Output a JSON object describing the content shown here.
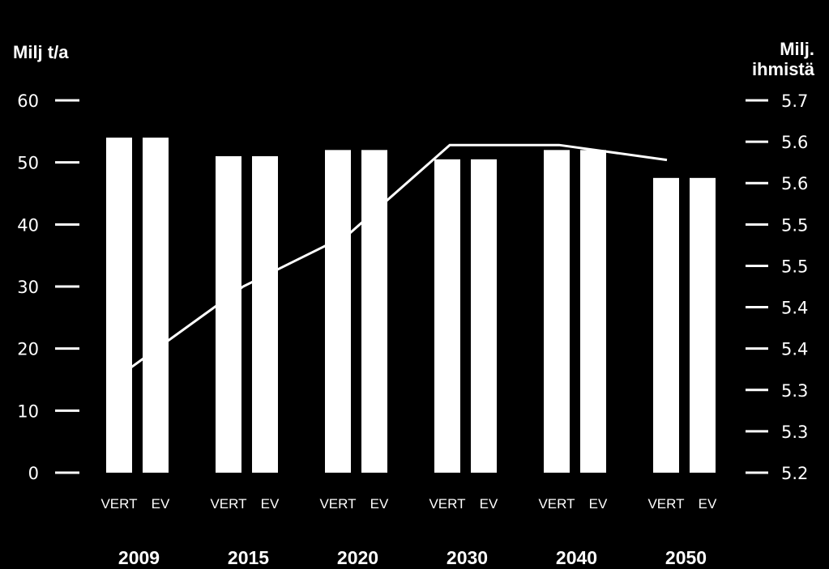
{
  "chart_data": {
    "type": "bar",
    "left_axis_label": "Milj t/a",
    "right_axis_label_line1": "Milj.",
    "right_axis_label_line2": "ihmistä",
    "left_ticks": [
      "0",
      "10",
      "20",
      "30",
      "40",
      "50",
      "60"
    ],
    "right_ticks": [
      "5.2",
      "5.3",
      "5.3",
      "5.4",
      "5.4",
      "5.5",
      "5.5",
      "5.6",
      "5.6",
      "5.7"
    ],
    "ylim": [
      0,
      60
    ],
    "y2lim": [
      5.2,
      5.7
    ],
    "groups": [
      "2009",
      "2015",
      "2020",
      "2030",
      "2040",
      "2050"
    ],
    "scenarios": [
      "VERT",
      "EV"
    ],
    "series": [
      {
        "name": "VERT",
        "values": [
          54,
          51,
          52,
          50.5,
          52,
          47.5
        ]
      },
      {
        "name": "EV",
        "values": [
          54,
          51,
          52,
          50.5,
          52,
          47.5
        ]
      }
    ],
    "line": {
      "axis": "right",
      "x": [
        "2009",
        "2015",
        "2020",
        "2030",
        "2040",
        "2050"
      ],
      "values": [
        5.34,
        5.45,
        5.52,
        5.64,
        5.64,
        5.62
      ]
    },
    "colors": {
      "background": "#000000",
      "bars": "#ffffff",
      "line": "#ffffff",
      "text": "#ffffff"
    }
  }
}
